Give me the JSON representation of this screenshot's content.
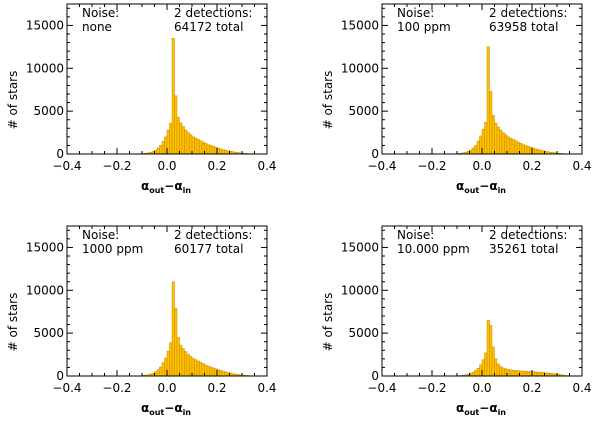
{
  "colors": {
    "bar_fill": "#FFC000",
    "bar_edge": "#C98A00",
    "axis": "#000000"
  },
  "chart_data": [
    {
      "type": "bar",
      "panel": "top-left",
      "ylabel": "# of stars",
      "xlabel": {
        "main_out": "α",
        "sub_out": "out",
        "dash": "−",
        "main_in": "α",
        "sub_in": "in"
      },
      "xlim": [
        -0.4,
        0.4
      ],
      "ylim": [
        0,
        17500
      ],
      "xticks": [
        "−0.4",
        "−0.2",
        "0.0",
        "0.2",
        "0.4"
      ],
      "yticks": [
        "0",
        "5000",
        "10000",
        "15000"
      ],
      "annotation_left": [
        "Noise:",
        "none"
      ],
      "annotation_right": [
        "2 detections:",
        "64172 total"
      ],
      "bins": {
        "start": -0.1,
        "width": 0.01,
        "values": [
          60,
          90,
          130,
          200,
          300,
          450,
          700,
          1000,
          1500,
          2000,
          2800,
          3600,
          13500,
          6800,
          4300,
          3600,
          3200,
          2800,
          2500,
          2250,
          2000,
          1850,
          1700,
          1550,
          1400,
          1250,
          1100,
          1000,
          900,
          800,
          700,
          600,
          520,
          450,
          380,
          320,
          260,
          210,
          170,
          130,
          100,
          70,
          50,
          30,
          20,
          12
        ]
      }
    },
    {
      "type": "bar",
      "panel": "top-right",
      "ylabel": "# of stars",
      "xlabel": {
        "main_out": "α",
        "sub_out": "out",
        "dash": "−",
        "main_in": "α",
        "sub_in": "in"
      },
      "xlim": [
        -0.4,
        0.4
      ],
      "ylim": [
        0,
        17500
      ],
      "xticks": [
        "−0.4",
        "−0.2",
        "0.0",
        "0.2",
        "0.4"
      ],
      "yticks": [
        "0",
        "5000",
        "10000",
        "15000"
      ],
      "annotation_left": [
        "Noise:",
        "100 ppm"
      ],
      "annotation_right": [
        "2 detections:",
        "63958 total"
      ],
      "bins": {
        "start": -0.1,
        "width": 0.01,
        "values": [
          60,
          90,
          130,
          200,
          300,
          450,
          700,
          1000,
          1500,
          2100,
          2900,
          3700,
          12500,
          7300,
          4500,
          3600,
          3150,
          2800,
          2500,
          2250,
          2000,
          1850,
          1700,
          1550,
          1400,
          1250,
          1100,
          1000,
          900,
          800,
          700,
          600,
          520,
          450,
          380,
          320,
          260,
          210,
          170,
          130,
          100,
          70,
          50,
          30,
          20,
          12
        ]
      }
    },
    {
      "type": "bar",
      "panel": "bottom-left",
      "ylabel": "# of stars",
      "xlabel": {
        "main_out": "α",
        "sub_out": "out",
        "dash": "−",
        "main_in": "α",
        "sub_in": "in"
      },
      "xlim": [
        -0.4,
        0.4
      ],
      "ylim": [
        0,
        17500
      ],
      "xticks": [
        "−0.4",
        "−0.2",
        "0.0",
        "0.2",
        "0.4"
      ],
      "yticks": [
        "0",
        "5000",
        "10000",
        "15000"
      ],
      "annotation_left": [
        "Noise:",
        "1000 ppm"
      ],
      "annotation_right": [
        "2 detections:",
        "60177 total"
      ],
      "bins": {
        "start": -0.1,
        "width": 0.01,
        "values": [
          70,
          100,
          150,
          230,
          340,
          500,
          750,
          1050,
          1550,
          2100,
          2900,
          3900,
          11000,
          7900,
          4500,
          3600,
          3200,
          2850,
          2550,
          2300,
          2050,
          1900,
          1750,
          1600,
          1450,
          1300,
          1150,
          1050,
          950,
          850,
          750,
          650,
          560,
          480,
          400,
          330,
          270,
          220,
          180,
          140,
          105,
          75,
          55,
          35,
          22,
          14
        ]
      }
    },
    {
      "type": "bar",
      "panel": "bottom-right",
      "ylabel": "# of stars",
      "xlabel": {
        "main_out": "α",
        "sub_out": "out",
        "dash": "−",
        "main_in": "α",
        "sub_in": "in"
      },
      "xlim": [
        -0.4,
        0.4
      ],
      "ylim": [
        0,
        17500
      ],
      "xticks": [
        "−0.4",
        "−0.2",
        "0.0",
        "0.2",
        "0.4"
      ],
      "yticks": [
        "0",
        "5000",
        "10000",
        "15000"
      ],
      "annotation_left": [
        "Noise:",
        "10.000 ppm"
      ],
      "annotation_right": [
        "2 detections:",
        "35261 total"
      ],
      "bins": {
        "start": -0.1,
        "width": 0.01,
        "values": [
          40,
          60,
          90,
          140,
          200,
          300,
          450,
          650,
          900,
          1300,
          1900,
          2700,
          6500,
          5900,
          3400,
          2000,
          1400,
          1100,
          950,
          850,
          780,
          720,
          680,
          650,
          620,
          600,
          580,
          560,
          540,
          520,
          500,
          480,
          460,
          440,
          410,
          380,
          350,
          320,
          280,
          240,
          200,
          150,
          100,
          60,
          30,
          15
        ]
      }
    }
  ]
}
